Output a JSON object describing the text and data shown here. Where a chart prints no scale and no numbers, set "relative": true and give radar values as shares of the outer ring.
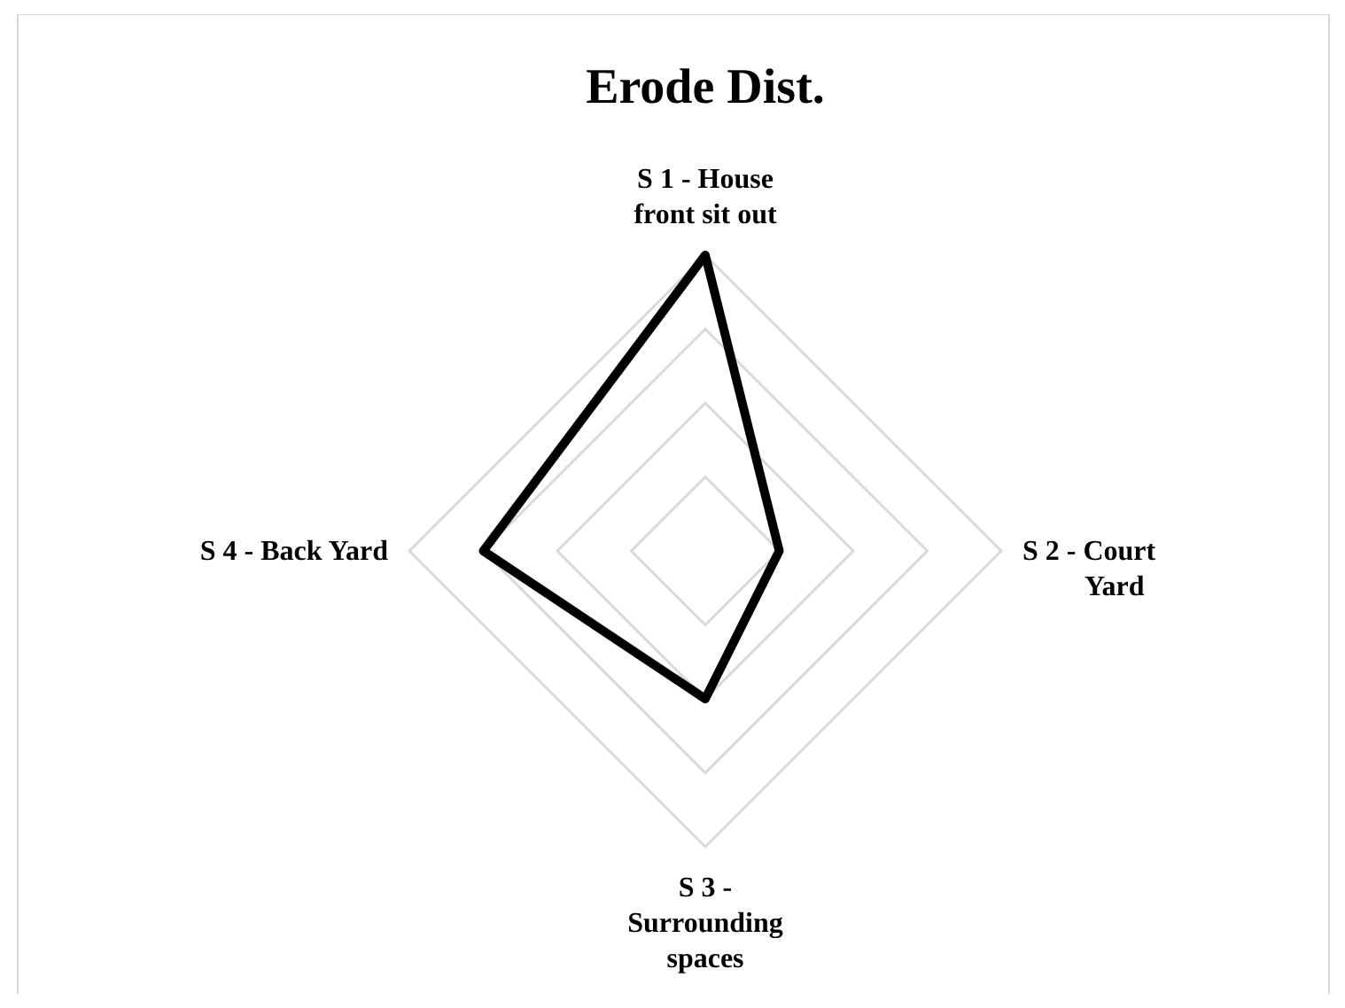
{
  "chart_data": {
    "type": "radar",
    "title": "Erode Dist.",
    "relative": true,
    "categories": [
      "S 1 - House front sit out",
      "S 2 - Court Yard",
      "S 3 - Surrounding spaces",
      "S 4 - Back Yard"
    ],
    "series": [
      {
        "color": "#000000",
        "values": [
          1,
          0.25,
          0.5,
          0.75
        ]
      }
    ],
    "grid": true,
    "marker": "none"
  }
}
